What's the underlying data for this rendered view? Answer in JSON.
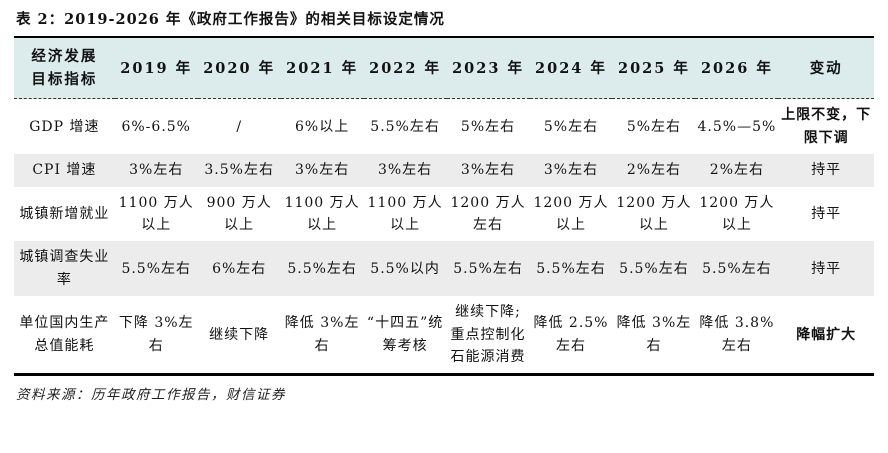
{
  "title": "表 2：2019-2026 年《政府工作报告》的相关目标设定情况",
  "columns": {
    "indicator_line1": "经济发展",
    "indicator_line2": "目标指标",
    "years": [
      "2019 年",
      "2020 年",
      "2021 年",
      "2022 年",
      "2023 年",
      "2024 年",
      "2025 年",
      "2026 年"
    ],
    "change": "变动"
  },
  "rows": [
    {
      "indicator": "GDP 增速",
      "values": [
        "6%-6.5%",
        "/",
        "6%以上",
        "5.5%左右",
        "5%左右",
        "5%左右",
        "5%左右",
        "4.5%—5%"
      ],
      "change": "上限不变，下限下调"
    },
    {
      "indicator": "CPI 增速",
      "values": [
        "3%左右",
        "3.5%左右",
        "3%左右",
        "3%左右",
        "3%左右",
        "3%左右",
        "2%左右",
        "2%左右"
      ],
      "change": "持平"
    },
    {
      "indicator": "城镇新增就业",
      "values": [
        "1100 万人以上",
        "900 万人以上",
        "1100 万人以上",
        "1100 万人以上",
        "1200 万人左右",
        "1200 万人以上",
        "1200 万人以上",
        "1200 万人以上"
      ],
      "change": "持平"
    },
    {
      "indicator": "城镇调查失业率",
      "values": [
        "5.5%左右",
        "6%左右",
        "5.5%左右",
        "5.5%以内",
        "5.5%左右",
        "5.5%左右",
        "5.5%左右",
        "5.5%左右"
      ],
      "change": "持平"
    },
    {
      "indicator": "单位国内生产总值能耗",
      "values": [
        "下降 3%左右",
        "继续下降",
        "降低 3%左右",
        "“十四五”统筹考核",
        "继续下降;重点控制化石能源消费",
        "降低 2.5%左右",
        "降低 3%左右",
        "降低 3.8%左右"
      ],
      "change": "降幅扩大"
    }
  ],
  "source": "资料来源：历年政府工作报告，财信证券"
}
